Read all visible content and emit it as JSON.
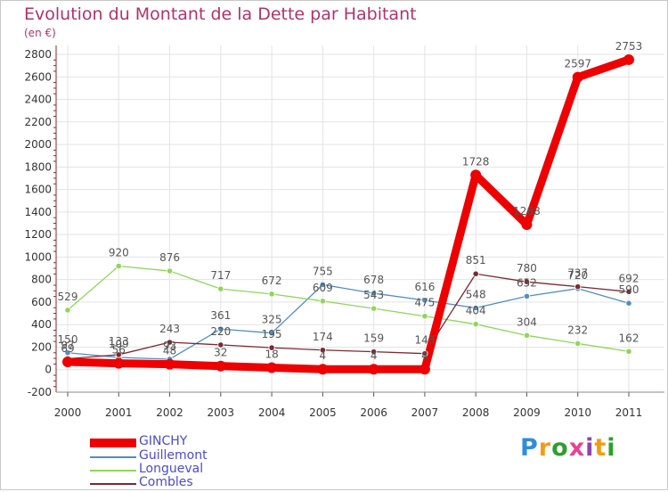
{
  "header": {
    "title": "Evolution du Montant de la Dette par Habitant",
    "subtitle": "(en €)"
  },
  "logo": {
    "letters": [
      "P",
      "r",
      "o",
      "x",
      "i",
      "t",
      "i"
    ],
    "colors": [
      "#2f8fd6",
      "#f39c12",
      "#2ca02c",
      "#e84393",
      "#8e44ad",
      "#f39c12",
      "#2ca02c"
    ]
  },
  "chart_data": {
    "type": "line",
    "x": [
      "2000",
      "2001",
      "2002",
      "2003",
      "2004",
      "2005",
      "2006",
      "2007",
      "2008",
      "2009",
      "2010",
      "2011"
    ],
    "ylim": [
      -200,
      2800
    ],
    "yticks": [
      "-200",
      "0",
      "200",
      "400",
      "600",
      "800",
      "1000",
      "1200",
      "1400",
      "1600",
      "1800",
      "2000",
      "2200",
      "2400",
      "2600",
      "2800"
    ],
    "grid": true,
    "legend_position": "bottom-left",
    "series": [
      {
        "name": "Guillemont",
        "color": "#4f8fc4",
        "values": [
          150,
          109,
          93,
          361,
          325,
          755,
          678,
          616,
          548,
          652,
          720,
          590
        ],
        "labels": [
          "150",
          "109",
          "93",
          "361",
          "325",
          "755",
          "678",
          "616",
          "548",
          "652",
          "720",
          "590"
        ]
      },
      {
        "name": "Longueval",
        "color": "#8fd65a",
        "values": [
          529,
          920,
          876,
          717,
          672,
          609,
          543,
          475,
          404,
          304,
          232,
          162
        ],
        "labels": [
          "529",
          "920",
          "876",
          "717",
          "672",
          "609",
          "543",
          "475",
          "404",
          "304",
          "232",
          "162"
        ]
      },
      {
        "name": "Combles",
        "color": "#7a2a33",
        "values": [
          97,
          133,
          243,
          220,
          195,
          174,
          159,
          143,
          851,
          780,
          737,
          692
        ],
        "labels": [
          "97",
          "133",
          "243",
          "220",
          "195",
          "174",
          "159",
          "143",
          "851",
          "780",
          "737",
          "692"
        ]
      },
      {
        "name": "GINCHY",
        "color": "#ee0000",
        "values": [
          69,
          56,
          48,
          32,
          18,
          4,
          4,
          4,
          1728,
          1288,
          2597,
          2753
        ],
        "labels": [
          "69",
          "56",
          "48",
          "32",
          "18",
          "4",
          "4",
          "4",
          "1728",
          "1288",
          "2597",
          "2753"
        ]
      }
    ]
  }
}
